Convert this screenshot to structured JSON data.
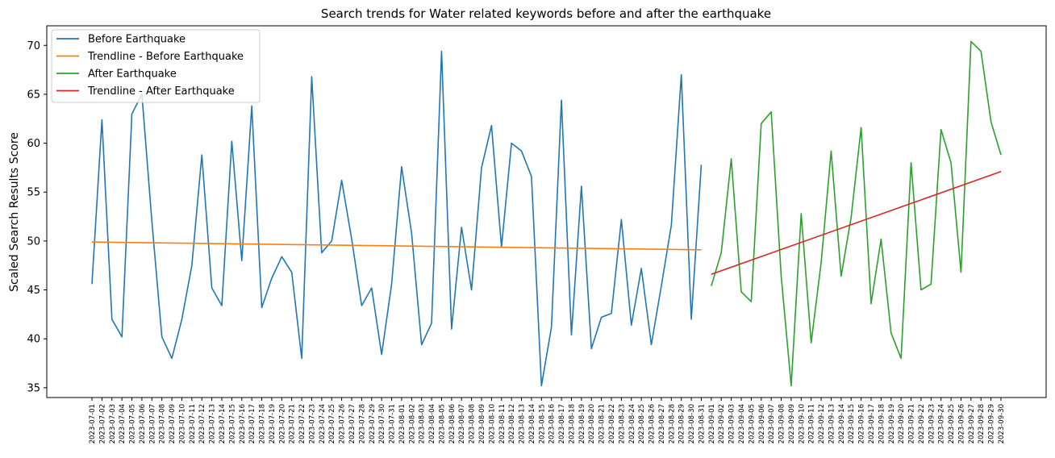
{
  "chart_data": {
    "type": "line",
    "title": "Search trends for Water related keywords before and after the earthquake",
    "xlabel": "",
    "ylabel": "Scaled Search Results Score",
    "ylim": [
      34,
      72
    ],
    "yticks": [
      35,
      40,
      45,
      50,
      55,
      60,
      65,
      70
    ],
    "grid": false,
    "legend_position": "top-left",
    "before_dates": [
      "2023-07-01",
      "2023-07-02",
      "2023-07-03",
      "2023-07-04",
      "2023-07-05",
      "2023-07-06",
      "2023-07-07",
      "2023-07-08",
      "2023-07-09",
      "2023-07-10",
      "2023-07-11",
      "2023-07-12",
      "2023-07-13",
      "2023-07-14",
      "2023-07-15",
      "2023-07-16",
      "2023-07-17",
      "2023-07-18",
      "2023-07-19",
      "2023-07-20",
      "2023-07-21",
      "2023-07-22",
      "2023-07-23",
      "2023-07-24",
      "2023-07-25",
      "2023-07-26",
      "2023-07-27",
      "2023-07-28",
      "2023-07-29",
      "2023-07-30",
      "2023-07-31",
      "2023-08-01",
      "2023-08-02",
      "2023-08-03",
      "2023-08-04",
      "2023-08-05",
      "2023-08-06",
      "2023-08-07",
      "2023-08-08",
      "2023-08-09",
      "2023-08-10",
      "2023-08-11",
      "2023-08-12",
      "2023-08-13",
      "2023-08-14",
      "2023-08-15",
      "2023-08-16",
      "2023-08-17",
      "2023-08-18",
      "2023-08-19",
      "2023-08-20",
      "2023-08-21",
      "2023-08-22",
      "2023-08-23",
      "2023-08-24",
      "2023-08-25",
      "2023-08-26",
      "2023-08-27",
      "2023-08-28",
      "2023-08-29",
      "2023-08-30",
      "2023-08-31"
    ],
    "after_dates": [
      "2023-09-01",
      "2023-09-02",
      "2023-09-03",
      "2023-09-04",
      "2023-09-05",
      "2023-09-06",
      "2023-09-07",
      "2023-09-08",
      "2023-09-09",
      "2023-09-10",
      "2023-09-11",
      "2023-09-12",
      "2023-09-13",
      "2023-09-14",
      "2023-09-15",
      "2023-09-16",
      "2023-09-17",
      "2023-09-18",
      "2023-09-19",
      "2023-09-20",
      "2023-09-21",
      "2023-09-22",
      "2023-09-23",
      "2023-09-24",
      "2023-09-25",
      "2023-09-26",
      "2023-09-27",
      "2023-09-28",
      "2023-09-29",
      "2023-09-30"
    ],
    "series": [
      {
        "name": "Before Earthquake",
        "color": "#1f77b4",
        "segment": "before",
        "values": [
          45.6,
          62.4,
          42.0,
          40.2,
          63.0,
          65.0,
          52.0,
          40.2,
          38.0,
          42.0,
          47.5,
          58.8,
          45.2,
          43.4,
          60.2,
          48.0,
          63.8,
          43.2,
          46.2,
          48.4,
          46.8,
          38.0,
          66.8,
          48.8,
          50.0,
          56.2,
          50.2,
          43.4,
          45.2,
          38.4,
          45.6,
          57.6,
          50.8,
          39.4,
          41.6,
          69.4,
          41.0,
          51.4,
          45.0,
          57.5,
          61.8,
          49.4,
          60.0,
          59.2,
          56.6,
          35.2,
          41.2,
          64.4,
          40.4,
          55.6,
          39.0,
          42.2,
          42.6,
          52.2,
          41.4,
          47.2,
          39.4,
          45.4,
          51.6,
          67.0,
          42.0,
          57.8
        ]
      },
      {
        "name": "Trendline - Before Earthquake",
        "color": "#ff7f0e",
        "segment": "before",
        "values": [
          49.9,
          49.1
        ]
      },
      {
        "name": "After Earthquake",
        "color": "#2ca02c",
        "segment": "after",
        "values": [
          45.4,
          48.8,
          58.4,
          44.8,
          43.8,
          62.0,
          63.2,
          46.4,
          35.2,
          52.8,
          39.6,
          47.8,
          59.2,
          46.4,
          52.4,
          61.6,
          43.6,
          50.2,
          40.6,
          38.0,
          58.0,
          45.0,
          45.6,
          61.4,
          58.0,
          46.8,
          70.4,
          69.4,
          62.2,
          58.8
        ]
      },
      {
        "name": "Trendline - After Earthquake",
        "color": "#d62728",
        "segment": "after",
        "values": [
          46.6,
          57.1
        ]
      }
    ]
  }
}
